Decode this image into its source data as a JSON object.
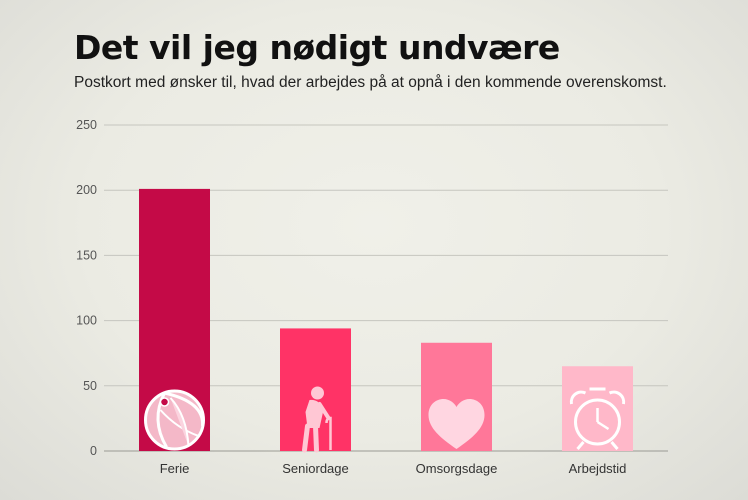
{
  "chart_data": {
    "type": "bar",
    "title": "Det vil jeg nødigt undvære",
    "subtitle": "Postkort med ønsker til, hvad der arbejdes på at opnå i den kommende overenskomst.",
    "categories": [
      "Ferie",
      "Seniordage",
      "Omsorgsdage",
      "Arbejdstid"
    ],
    "values": [
      201,
      94,
      83,
      65
    ],
    "colors": [
      "#c40a47",
      "#ff3366",
      "#ff7799",
      "#ffb8c9"
    ],
    "icons": [
      "beach-ball-icon",
      "elderly-person-icon",
      "heart-icon",
      "alarm-clock-icon"
    ],
    "ylim": [
      0,
      250
    ],
    "yticks": [
      "0",
      "50",
      "100",
      "150",
      "200",
      "250"
    ],
    "xlabel": "",
    "ylabel": "",
    "grid": true
  }
}
